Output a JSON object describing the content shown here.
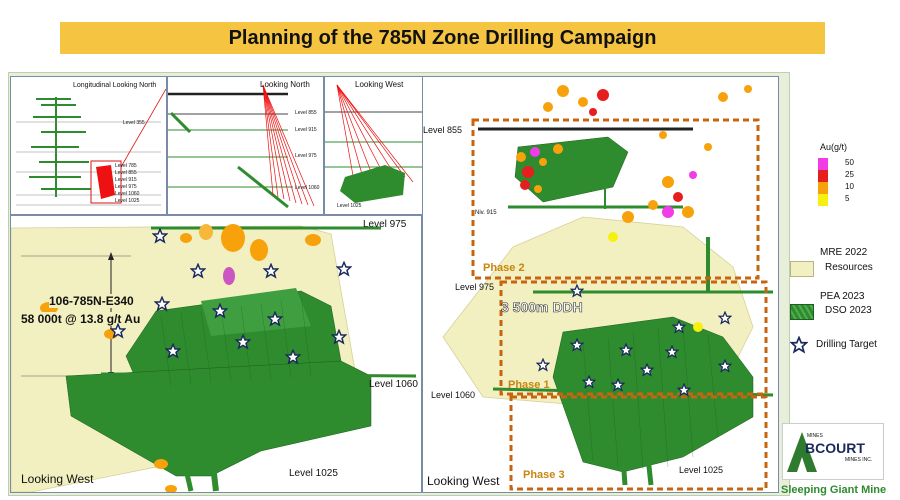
{
  "title": "Planning of the 785N Zone Drilling Campaign",
  "thumb1": {
    "title": "Longitudinal Looking North",
    "levels": [
      "Level 355",
      "Level 785",
      "Level 855",
      "Level 915",
      "Level 975",
      "Level 1060",
      "Level 1025"
    ]
  },
  "thumb2": {
    "title": "Looking North",
    "levels": [
      "Level 855",
      "Level 915",
      "Level 975",
      "Level 1060"
    ]
  },
  "thumb3": {
    "title": "Looking West",
    "levels": [
      "Level 1025"
    ]
  },
  "left_view": {
    "level_975": "Level 975",
    "level_1060": "Level 1060",
    "level_1025": "Level 1025",
    "hole_id": "106-785N-E340",
    "resource": "58 000t @ 13.8 g/t Au",
    "view_label": "Looking West"
  },
  "right_view": {
    "level_855": "Level 855",
    "niv": "Niv. 915",
    "level_975": "Level 975",
    "level_1060": "Level 1060",
    "level_1025": "Level 1025",
    "ddh": "3 500m   DDH",
    "phase1": "Phase 1",
    "phase2": "Phase 2",
    "phase3": "Phase 3",
    "view_label": "Looking West"
  },
  "legend": {
    "au_title": "Au(g/t)",
    "au_items": [
      {
        "label": "50",
        "color": "#f23ce8"
      },
      {
        "label": "25",
        "color": "#e61e1e"
      },
      {
        "label": "10",
        "color": "#f7a20a"
      },
      {
        "label": "5",
        "color": "#f5f00f"
      }
    ],
    "mre_title": "MRE 2022",
    "mre_label": "Resources",
    "pea_title": "PEA 2023",
    "pea_label": "DSO 2023",
    "target_label": "Drilling Target"
  },
  "logo": {
    "mines_top": "MINES",
    "name": "BCOURT",
    "mines_inc": "MINES INC."
  },
  "footer": "Sleeping Giant Mine",
  "colors": {
    "title_bg": "#f5c542",
    "resource_fill": "#f2efc0",
    "dso_green": "#2e8b2e",
    "star_navy": "#1b2a5c",
    "phase_dash": "#c8640f",
    "footer_green": "#2f8a2f"
  }
}
